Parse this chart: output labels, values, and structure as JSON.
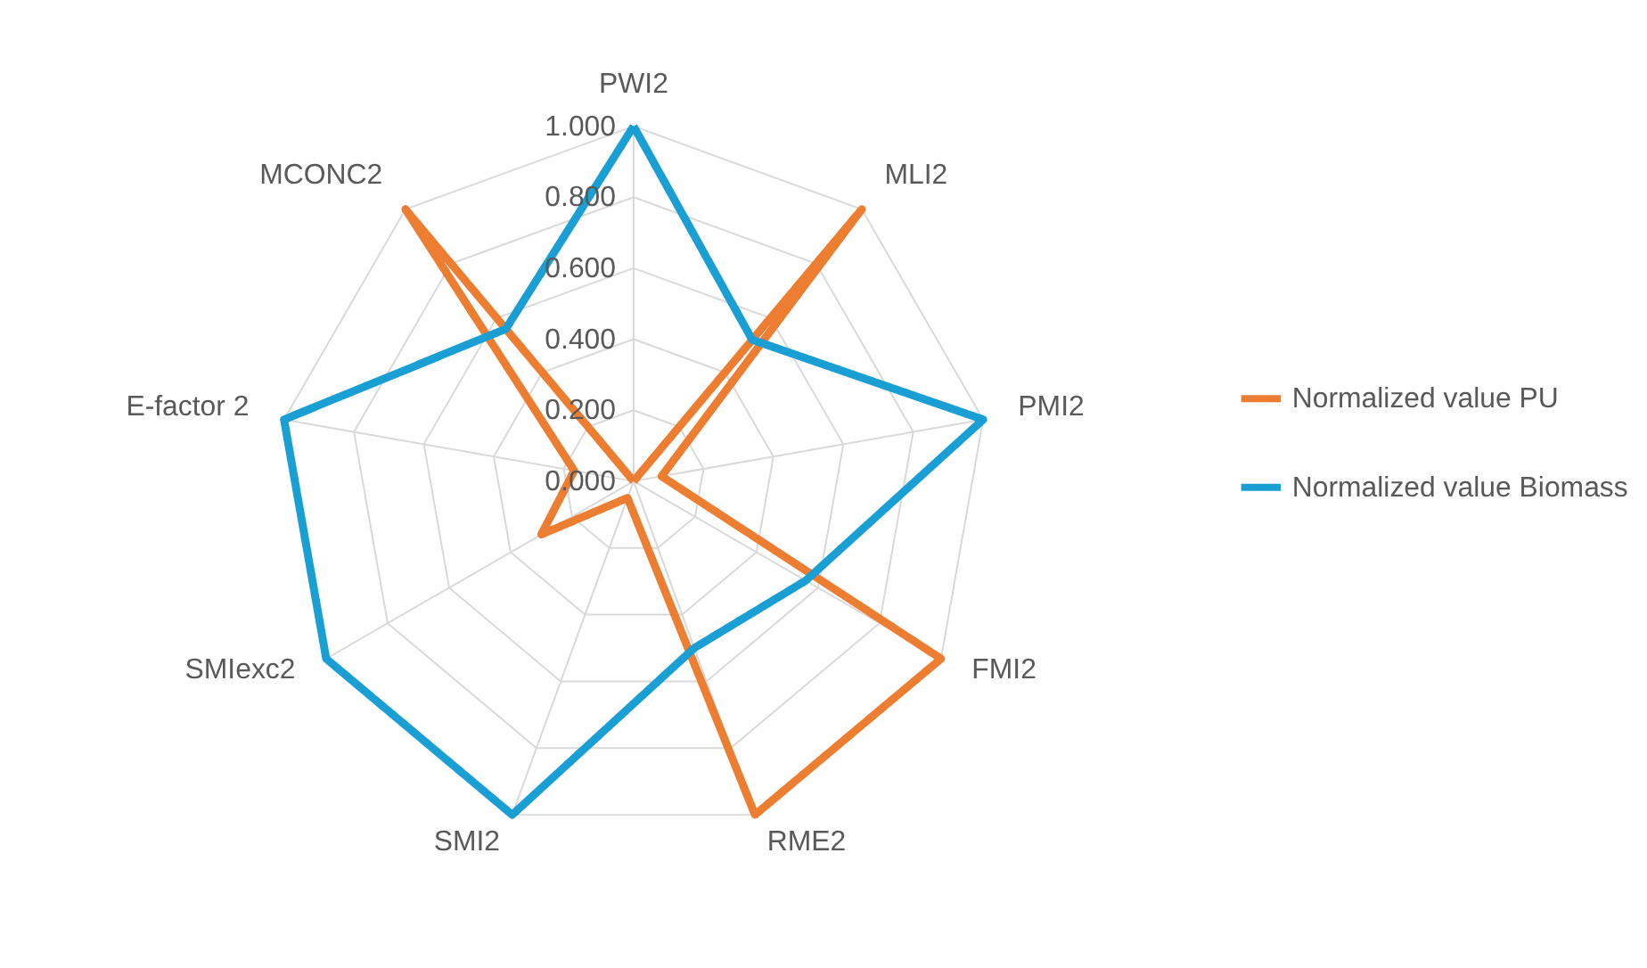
{
  "chart_data": {
    "type": "radar",
    "categories": [
      "PWI2",
      "MLI2",
      "PMI2",
      "FMI2",
      "RME2",
      "SMI2",
      "SMIexc2",
      "E-factor 2",
      "MCONC2"
    ],
    "series": [
      {
        "name": "Normalized value PU",
        "color": "#ed7d31",
        "values": [
          0,
          1,
          0.08,
          1,
          1,
          0.05,
          0.3,
          0.17,
          1
        ]
      },
      {
        "name": "Normalized value Biomass",
        "color": "#1a9fd4",
        "values": [
          1,
          0.52,
          1,
          0.56,
          0.5,
          1,
          1,
          1,
          0.56
        ]
      }
    ],
    "ylim": [
      0,
      1
    ],
    "yticks": [
      {
        "value": 0,
        "label": "0.000"
      },
      {
        "value": 0.2,
        "label": "0.200"
      },
      {
        "value": 0.4,
        "label": "0.400"
      },
      {
        "value": 0.6,
        "label": "0.600"
      },
      {
        "value": 0.8,
        "label": "0.800"
      },
      {
        "value": 1,
        "label": "1.000"
      }
    ],
    "grid": true,
    "legend": "right",
    "marker": "none",
    "line_style": "solid"
  }
}
